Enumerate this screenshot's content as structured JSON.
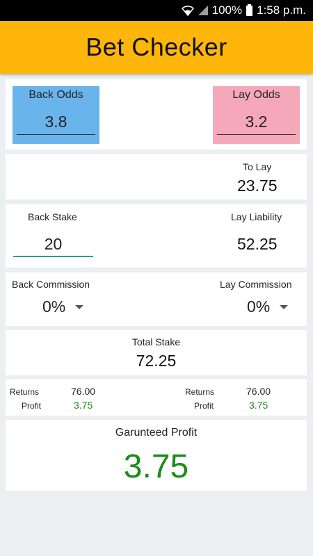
{
  "status_bar": {
    "battery_text": "100%",
    "time": "1:58 p.m.",
    "icons": [
      "wifi-icon",
      "signal-icon",
      "battery-icon"
    ]
  },
  "app": {
    "title": "Bet Checker",
    "accent_color": "#ffb60a"
  },
  "odds": {
    "back_label": "Back Odds",
    "back_value": "3.8",
    "back_color": "#6ab4ec",
    "lay_label": "Lay Odds",
    "lay_value": "3.2",
    "lay_color": "#f5a8ba"
  },
  "to_lay": {
    "label": "To Lay",
    "value": "23.75"
  },
  "stake": {
    "back_label": "Back Stake",
    "back_value": "20",
    "liability_label": "Lay Liability",
    "liability_value": "52.25"
  },
  "commission": {
    "back_label": "Back Commission",
    "back_value": "0%",
    "lay_label": "Lay Commission",
    "lay_value": "0%"
  },
  "total": {
    "label": "Total Stake",
    "value": "72.25"
  },
  "returns": {
    "back": {
      "returns_label": "Returns",
      "returns_value": "76.00",
      "profit_label": "Profit",
      "profit_value": "3.75"
    },
    "lay": {
      "returns_label": "Returns",
      "returns_value": "76.00",
      "profit_label": "Profit",
      "profit_value": "3.75"
    }
  },
  "guaranteed": {
    "label": "Garunteed Profit",
    "value": "3.75",
    "color": "#1a8c1a"
  }
}
